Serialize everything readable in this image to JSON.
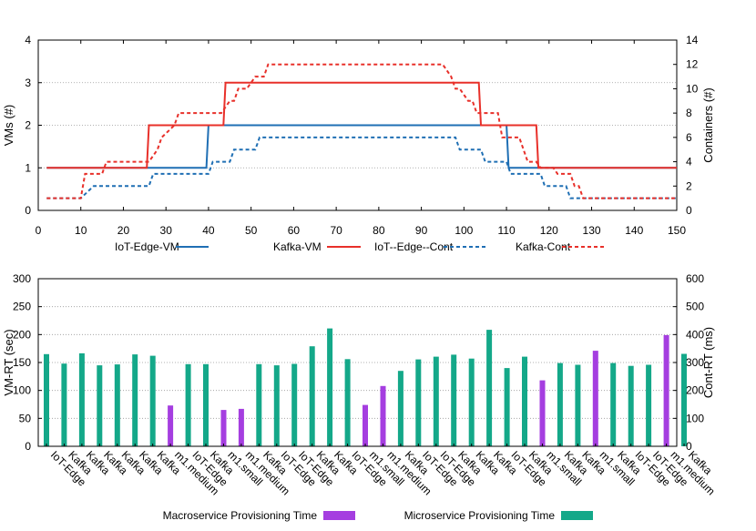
{
  "chart_data": [
    {
      "type": "line",
      "xlim": [
        0,
        150
      ],
      "ylim_left": [
        0,
        4
      ],
      "ylim_right": [
        0,
        14
      ],
      "ylabel_left": "VMs (#)",
      "ylabel_right": "Containers (#)",
      "x_ticks": [
        "0",
        "10",
        "20",
        "30",
        "40",
        "50",
        "60",
        "70",
        "80",
        "90",
        "100",
        "110",
        "120",
        "130",
        "140",
        "150"
      ],
      "y_left_ticks": [
        "0",
        "1",
        "2",
        "3",
        "4"
      ],
      "y_right_ticks": [
        "0",
        "2",
        "4",
        "6",
        "8",
        "10",
        "12",
        "14"
      ],
      "grid": "horizontal dotted",
      "legend_position": "bottom",
      "series": [
        {
          "name": "IoT-Edge-VM",
          "axis": "left",
          "style": "solid",
          "color": "#1f6fb4",
          "points": [
            [
              2,
              1
            ],
            [
              39.5,
              1
            ],
            [
              40,
              2
            ],
            [
              110,
              2
            ],
            [
              110.5,
              1
            ],
            [
              150,
              1
            ]
          ]
        },
        {
          "name": "Kafka-VM",
          "axis": "left",
          "style": "solid",
          "color": "#e8302a",
          "points": [
            [
              2,
              1
            ],
            [
              25.5,
              1
            ],
            [
              26,
              2
            ],
            [
              43.5,
              2
            ],
            [
              44,
              3
            ],
            [
              103.5,
              3
            ],
            [
              104,
              2
            ],
            [
              117,
              2
            ],
            [
              117.5,
              1
            ],
            [
              150,
              1
            ]
          ]
        },
        {
          "name": "IoT--Edge--Cont",
          "axis": "right",
          "style": "dashed",
          "color": "#1f6fb4",
          "points": [
            [
              2,
              1
            ],
            [
              10,
              1
            ],
            [
              13,
              2
            ],
            [
              26,
              2
            ],
            [
              27,
              3
            ],
            [
              40,
              3
            ],
            [
              41,
              4
            ],
            [
              45,
              4
            ],
            [
              46,
              5
            ],
            [
              51,
              5
            ],
            [
              52,
              6
            ],
            [
              98,
              6
            ],
            [
              99,
              5
            ],
            [
              104,
              5
            ],
            [
              105,
              4
            ],
            [
              110,
              4
            ],
            [
              111,
              3
            ],
            [
              118,
              3
            ],
            [
              119,
              2
            ],
            [
              124,
              2
            ],
            [
              125,
              1
            ],
            [
              150,
              1
            ]
          ]
        },
        {
          "name": "Kafka-Cont",
          "axis": "right",
          "style": "dashed",
          "color": "#e8302a",
          "points": [
            [
              2,
              1
            ],
            [
              10,
              1
            ],
            [
              11,
              3
            ],
            [
              15,
              3
            ],
            [
              16,
              4
            ],
            [
              26,
              4
            ],
            [
              28,
              5
            ],
            [
              29,
              6
            ],
            [
              32,
              7
            ],
            [
              33,
              8
            ],
            [
              43,
              8
            ],
            [
              45,
              9
            ],
            [
              46,
              9
            ],
            [
              47,
              10
            ],
            [
              49,
              10
            ],
            [
              51,
              11
            ],
            [
              53,
              11
            ],
            [
              54,
              12
            ],
            [
              95,
              12
            ],
            [
              97,
              11
            ],
            [
              98,
              10
            ],
            [
              99,
              10
            ],
            [
              101,
              9
            ],
            [
              102,
              9
            ],
            [
              103,
              8
            ],
            [
              108,
              8
            ],
            [
              109,
              6
            ],
            [
              113,
              6
            ],
            [
              115,
              4
            ],
            [
              117,
              4
            ],
            [
              118,
              3.5
            ],
            [
              121,
              3.5
            ],
            [
              122,
              3
            ],
            [
              125,
              3
            ],
            [
              126,
              2
            ],
            [
              127,
              2
            ],
            [
              128,
              1
            ],
            [
              150,
              1
            ]
          ]
        }
      ]
    },
    {
      "type": "bar",
      "ylim_left": [
        0,
        300
      ],
      "ylim_right": [
        0,
        600
      ],
      "ylabel_left": "VM-RT (sec)",
      "ylabel_right": "Cont-RT (ms)",
      "y_left_ticks": [
        "0",
        "50",
        "100",
        "150",
        "200",
        "250",
        "300"
      ],
      "y_right_ticks": [
        "0",
        "100",
        "200",
        "300",
        "400",
        "500",
        "600"
      ],
      "grid": "horizontal dotted",
      "legend_position": "bottom",
      "series": [
        {
          "name": "Macroservice Provisioning Time",
          "color": "#a53ee0",
          "axis": "left"
        },
        {
          "name": "Microservice Provisioning Time",
          "color": "#14a889",
          "axis": "right"
        }
      ],
      "categories": [
        "IoT-Edge",
        "Kafka",
        "Kafka",
        "Kafka",
        "Kafka",
        "Kafka",
        "Kafka",
        "m1.medium",
        "IoT-Edge",
        "Kafka",
        "m1.small",
        "m1.medium",
        "Kafka",
        "IoT-Edge",
        "IoT-Edge",
        "Kafka",
        "Kafka",
        "IoT-Edge",
        "m1.small",
        "m1.medium",
        "Kafka",
        "IoT-Edge",
        "IoT-Edge",
        "Kafka",
        "Kafka",
        "Kafka",
        "IoT-Edge",
        "Kafka",
        "m1.small",
        "Kafka",
        "Kafka",
        "m1.small",
        "Kafka",
        "IoT-Edge",
        "IoT-Edge",
        "m1.medium",
        "Kafka"
      ],
      "bars": [
        {
          "x": 0,
          "value": 330,
          "type": "micro"
        },
        {
          "x": 1,
          "value": 296,
          "type": "micro"
        },
        {
          "x": 2,
          "value": 333,
          "type": "micro"
        },
        {
          "x": 3,
          "value": 290,
          "type": "micro"
        },
        {
          "x": 4,
          "value": 293,
          "type": "micro"
        },
        {
          "x": 5,
          "value": 329,
          "type": "micro"
        },
        {
          "x": 6,
          "value": 324,
          "type": "micro"
        },
        {
          "x": 7,
          "value": 73,
          "type": "macro"
        },
        {
          "x": 8,
          "value": 294,
          "type": "micro"
        },
        {
          "x": 9,
          "value": 294,
          "type": "micro"
        },
        {
          "x": 10,
          "value": 65,
          "type": "macro"
        },
        {
          "x": 11,
          "value": 67,
          "type": "macro"
        },
        {
          "x": 12,
          "value": 294,
          "type": "micro"
        },
        {
          "x": 13,
          "value": 290,
          "type": "micro"
        },
        {
          "x": 14,
          "value": 295,
          "type": "micro"
        },
        {
          "x": 15,
          "value": 358,
          "type": "micro"
        },
        {
          "x": 16,
          "value": 422,
          "type": "micro"
        },
        {
          "x": 17,
          "value": 312,
          "type": "micro"
        },
        {
          "x": 18,
          "value": 74,
          "type": "macro"
        },
        {
          "x": 19,
          "value": 108,
          "type": "macro"
        },
        {
          "x": 20,
          "value": 270,
          "type": "micro"
        },
        {
          "x": 21,
          "value": 311,
          "type": "micro"
        },
        {
          "x": 22,
          "value": 321,
          "type": "micro"
        },
        {
          "x": 23,
          "value": 328,
          "type": "micro"
        },
        {
          "x": 24,
          "value": 314,
          "type": "micro"
        },
        {
          "x": 25,
          "value": 417,
          "type": "micro"
        },
        {
          "x": 26,
          "value": 280,
          "type": "micro"
        },
        {
          "x": 27,
          "value": 321,
          "type": "micro"
        },
        {
          "x": 28,
          "value": 118,
          "type": "macro"
        },
        {
          "x": 29,
          "value": 298,
          "type": "micro"
        },
        {
          "x": 30,
          "value": 292,
          "type": "micro"
        },
        {
          "x": 31,
          "value": 171,
          "type": "macro"
        },
        {
          "x": 32,
          "value": 298,
          "type": "micro"
        },
        {
          "x": 33,
          "value": 288,
          "type": "micro"
        },
        {
          "x": 34,
          "value": 292,
          "type": "micro"
        },
        {
          "x": 35,
          "value": 199,
          "type": "macro"
        },
        {
          "x": 36,
          "value": 331,
          "type": "micro"
        }
      ]
    }
  ]
}
